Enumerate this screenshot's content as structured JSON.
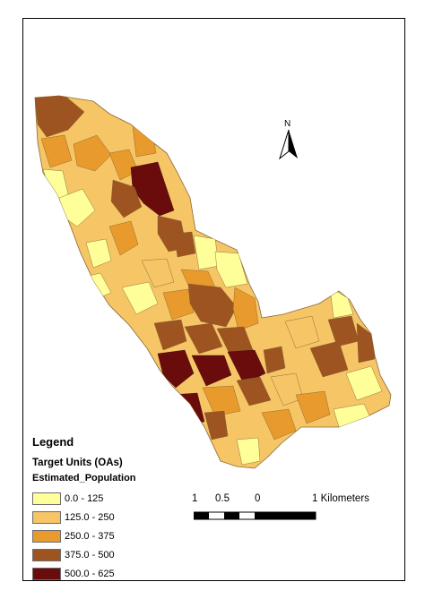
{
  "legend": {
    "title": "Legend",
    "subtitle": "Target Units (OAs)",
    "field": "Estimated_Population",
    "classes": [
      {
        "label": "0.0 - 125",
        "color": "#ffff99",
        "min": 0,
        "max": 125
      },
      {
        "label": "125.0 - 250",
        "color": "#f5c566",
        "min": 125,
        "max": 250
      },
      {
        "label": "250.0 - 375",
        "color": "#e89a2c",
        "min": 250,
        "max": 375
      },
      {
        "label": "375.0 - 500",
        "color": "#9e5420",
        "min": 375,
        "max": 500
      },
      {
        "label": "500.0 - 625",
        "color": "#6b0c0c",
        "min": 500,
        "max": 625
      }
    ]
  },
  "scale_bar": {
    "labels": [
      "1",
      "0.5",
      "0",
      "1 Kilometers"
    ]
  },
  "north_arrow": {
    "label": "N",
    "icon": "north-arrow-icon"
  }
}
